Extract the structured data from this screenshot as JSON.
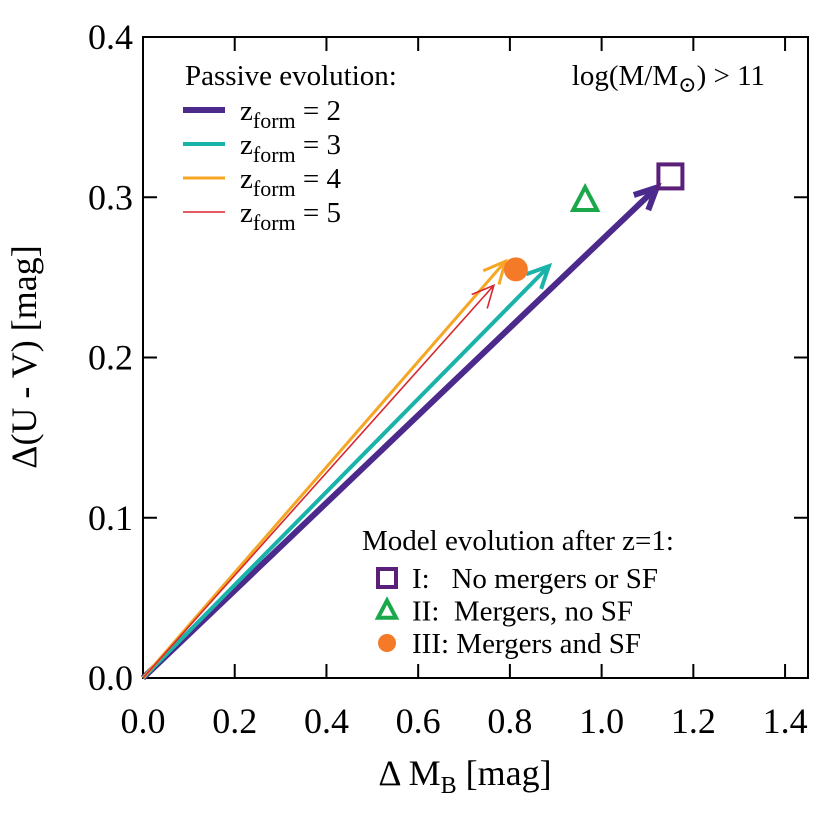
{
  "chart_data": {
    "type": "vector",
    "xlabel": {
      "text": "Δ M",
      "sub": "B",
      "rest": " [mag]"
    },
    "ylabel": "Δ(U - V) [mag]",
    "xlim": [
      0,
      1.45
    ],
    "xticks": [
      {
        "value": 0,
        "label": "0.0"
      },
      0.2,
      0.4,
      0.6,
      0.8,
      {
        "value": 1,
        "label": "1.0"
      },
      1.2,
      1.4
    ],
    "ylim": [
      0,
      0.4
    ],
    "yticks": [
      {
        "value": 0,
        "label": "0.0"
      },
      0.1,
      0.2,
      0.3,
      0.4
    ],
    "annotation": {
      "text": "log(M/M",
      "sub": "⊙",
      "rest": ") > 11"
    },
    "series_title": "Passive evolution:",
    "series": [
      {
        "name": "z",
        "sub": "form",
        "rest": " = 2",
        "color": "#4b2a8c",
        "width": 6,
        "x": [
          0,
          1.12
        ],
        "values": [
          0,
          0.306
        ]
      },
      {
        "name": "z",
        "sub": "form",
        "rest": " = 3",
        "color": "#1ab3aa",
        "width": 4,
        "x": [
          0,
          0.885
        ],
        "values": [
          0,
          0.257
        ]
      },
      {
        "name": "z",
        "sub": "form",
        "rest": " = 4",
        "color": "#f5a623",
        "width": 3,
        "x": [
          0,
          0.79
        ],
        "values": [
          0,
          0.26
        ]
      },
      {
        "name": "z",
        "sub": "form",
        "rest": " = 5",
        "color": "#d8262e",
        "width": 1.6,
        "x": [
          0,
          0.765
        ],
        "values": [
          0,
          0.245
        ]
      }
    ],
    "points_title": "Model evolution after z=1:",
    "points": [
      {
        "name": "I:   No mergers or SF",
        "marker": "square",
        "color": "#5b1f7a",
        "x": 1.15,
        "value": 0.313
      },
      {
        "name": "II:  Mergers, no SF",
        "marker": "triangle",
        "color": "#1aa84a",
        "x": 0.964,
        "value": 0.298
      },
      {
        "name": "III: Mergers and SF",
        "marker": "circle",
        "color": "#f47a28",
        "x": 0.813,
        "value": 0.255
      }
    ]
  }
}
